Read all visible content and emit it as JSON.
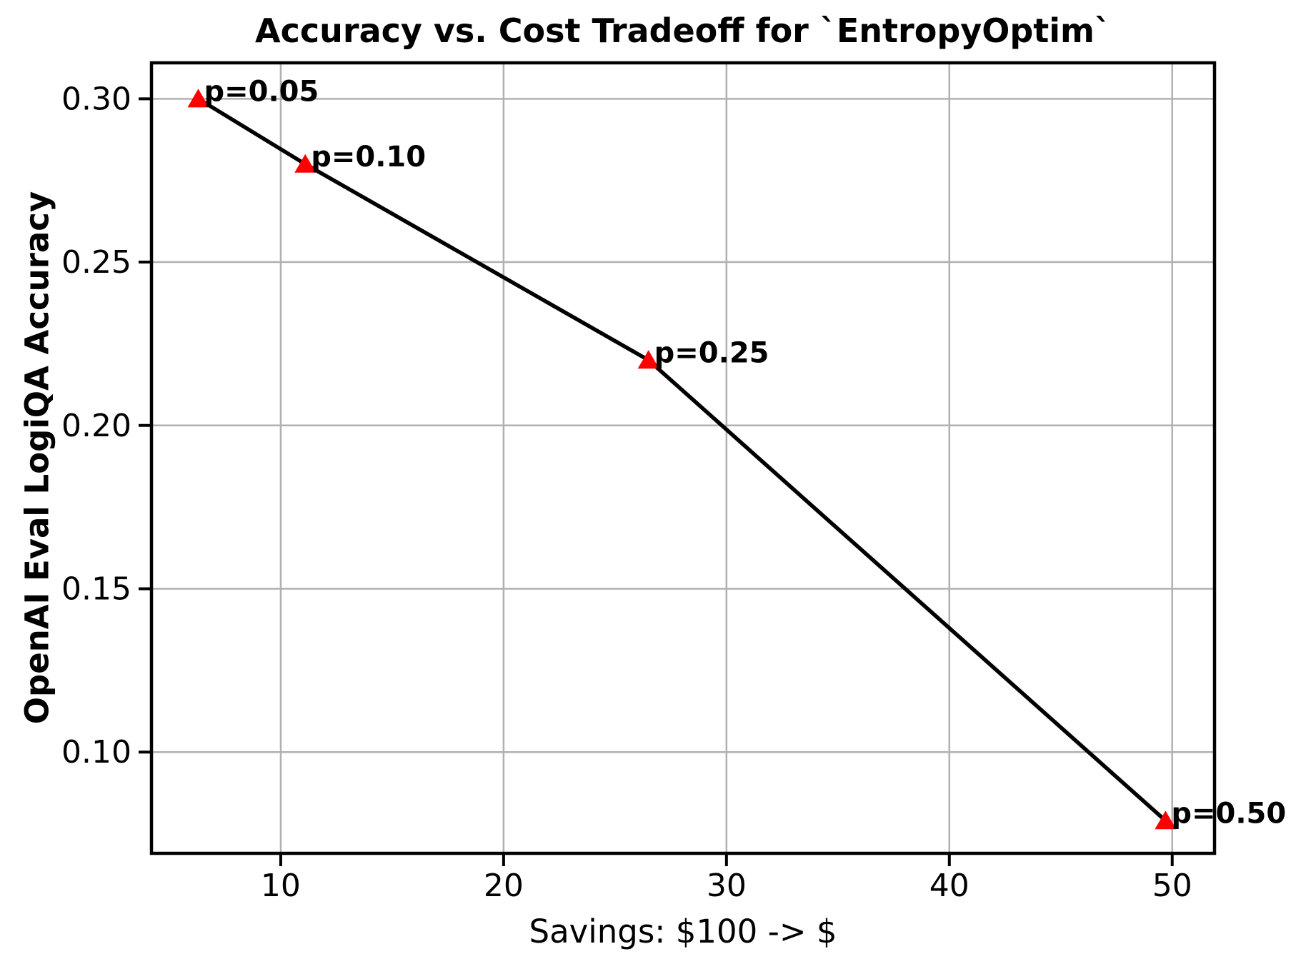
{
  "figure": {
    "background": "#ffffff"
  },
  "chart_data": {
    "type": "line",
    "title": "Accuracy vs. Cost Tradeoff for `EntropyOptim`",
    "xlabel": "Savings: $100 -> $",
    "ylabel": "OpenAI Eval LogiQA Accuracy",
    "xlim": [
      4.2,
      51.9
    ],
    "ylim": [
      0.069,
      0.311
    ],
    "grid": true,
    "legend": "none",
    "xticks": [
      10,
      20,
      30,
      40,
      50
    ],
    "xtick_labels": [
      "10",
      "20",
      "30",
      "40",
      "50"
    ],
    "yticks": [
      0.1,
      0.15,
      0.2,
      0.25,
      0.3
    ],
    "ytick_labels": [
      "0.10",
      "0.15",
      "0.20",
      "0.25",
      "0.30"
    ],
    "series": [
      {
        "x": [
          6.3,
          11.1,
          26.5,
          49.7
        ],
        "y": [
          0.3,
          0.28,
          0.22,
          0.079
        ],
        "point_labels": [
          "p=0.05",
          "p=0.10",
          "p=0.25",
          "p=0.50"
        ],
        "line_color": "#000000",
        "marker": "triangle-up",
        "marker_color": "#ff0000"
      }
    ],
    "colors": {
      "grid": "#b0b0b0",
      "spine": "#000000",
      "text": "#000000"
    }
  }
}
